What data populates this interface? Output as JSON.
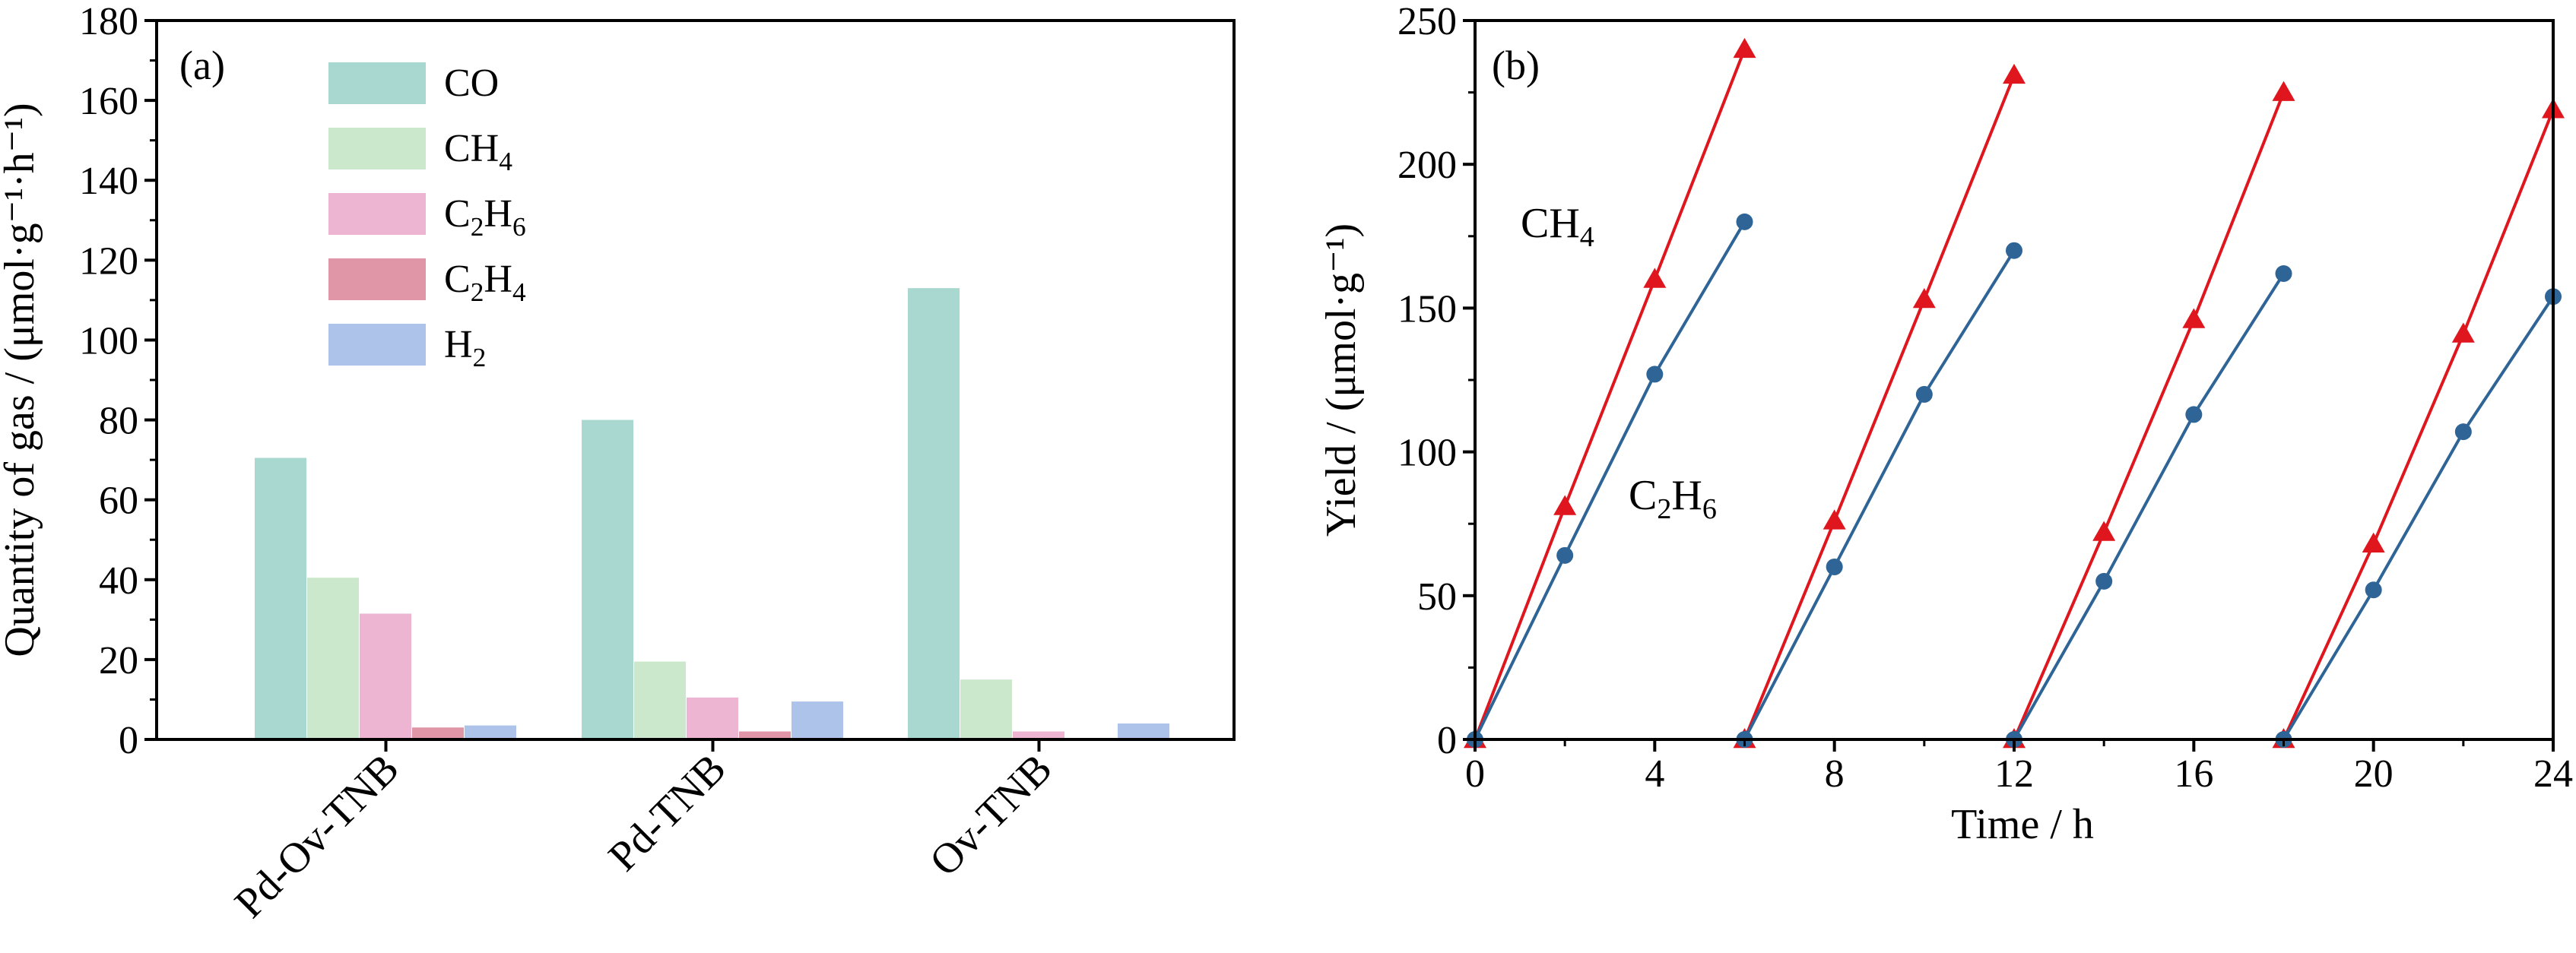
{
  "chart_data": [
    {
      "panel_label": "(a)",
      "type": "bar",
      "ylabel": "Quantity of gas / (μmol·g⁻¹·h⁻¹)",
      "ylim": [
        0,
        180
      ],
      "yticks": [
        "0",
        "20",
        "40",
        "60",
        "80",
        "100",
        "120",
        "140",
        "160",
        "180"
      ],
      "categories": [
        "Pd-Ov-TNB",
        "Pd-TNB",
        "Ov-TNB"
      ],
      "legend_position": "top-left",
      "series": [
        {
          "name": "CO",
          "name_main": "CO",
          "name_sub": "",
          "name_tail": "",
          "name_tail_sub": "",
          "color": "#a8d8cf",
          "values": [
            70.5,
            80,
            113
          ]
        },
        {
          "name": "CH4",
          "name_main": "CH",
          "name_sub": "4",
          "name_tail": "",
          "name_tail_sub": "",
          "color": "#cce8cc",
          "values": [
            40.5,
            19.5,
            15
          ]
        },
        {
          "name": "C2H6",
          "name_main": "C",
          "name_sub": "2",
          "name_tail": "H",
          "name_tail_sub": "6",
          "color": "#edb5d2",
          "values": [
            31.5,
            10.5,
            2
          ]
        },
        {
          "name": "C2H4",
          "name_main": "C",
          "name_sub": "2",
          "name_tail": "H",
          "name_tail_sub": "4",
          "color": "#e196a8",
          "values": [
            3,
            2,
            0
          ]
        },
        {
          "name": "H2",
          "name_main": "H",
          "name_sub": "2",
          "name_tail": "",
          "name_tail_sub": "",
          "color": "#aec3ea",
          "values": [
            3.5,
            9.5,
            4
          ]
        }
      ]
    },
    {
      "panel_label": "(b)",
      "type": "line",
      "xlabel": "Time / h",
      "ylabel": "Yield / (μmol·g⁻¹)",
      "xlim": [
        0,
        24
      ],
      "ylim": [
        0,
        250
      ],
      "xticks": [
        "0",
        "4",
        "8",
        "12",
        "16",
        "20",
        "24"
      ],
      "yticks": [
        "0",
        "50",
        "100",
        "150",
        "200",
        "250"
      ],
      "series": [
        {
          "name": "CH4",
          "label_main": "CH",
          "label_sub": "4",
          "label_tail": "",
          "label_tail_sub": "",
          "color": "#e0161e",
          "marker": "triangle",
          "cycles": [
            {
              "x": [
                0,
                2,
                4,
                6
              ],
              "y": [
                0,
                81,
                160,
                240
              ]
            },
            {
              "x": [
                6,
                8,
                10,
                12
              ],
              "y": [
                0,
                76,
                153,
                231
              ]
            },
            {
              "x": [
                12,
                14,
                16,
                18
              ],
              "y": [
                0,
                72,
                146,
                225
              ]
            },
            {
              "x": [
                18,
                20,
                22,
                24
              ],
              "y": [
                0,
                68,
                141,
                219
              ]
            }
          ]
        },
        {
          "name": "C2H6",
          "label_main": "C",
          "label_sub": "2",
          "label_tail": "H",
          "label_tail_sub": "6",
          "color": "#2e6496",
          "marker": "circle",
          "cycles": [
            {
              "x": [
                0,
                2,
                4,
                6
              ],
              "y": [
                0,
                64,
                127,
                180
              ]
            },
            {
              "x": [
                6,
                8,
                10,
                12
              ],
              "y": [
                0,
                60,
                120,
                170
              ]
            },
            {
              "x": [
                12,
                14,
                16,
                18
              ],
              "y": [
                0,
                55,
                113,
                162
              ]
            },
            {
              "x": [
                18,
                20,
                22,
                24
              ],
              "y": [
                0,
                52,
                107,
                154
              ]
            }
          ]
        }
      ]
    }
  ]
}
